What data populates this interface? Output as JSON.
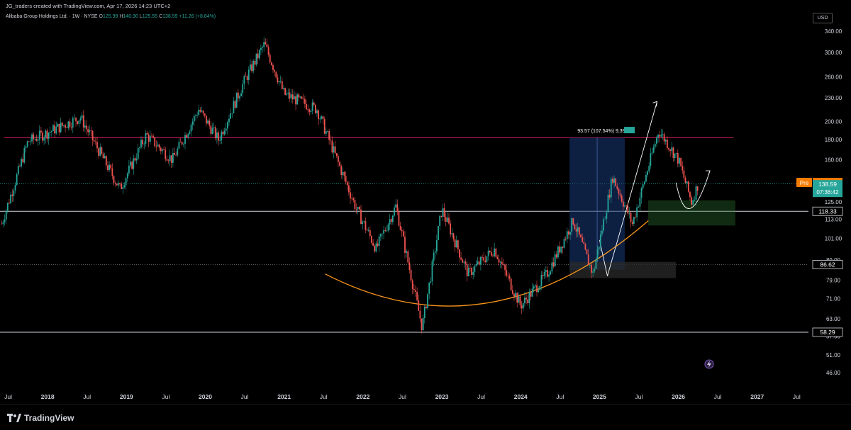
{
  "header": {
    "credit": "JG_traders created with TradingView.com, Apr 17, 2026 14:23 UTC+2"
  },
  "legend": {
    "symbol": "Alibaba Group Holdings Ltd. · 1W · NYSE",
    "open_label": "O",
    "open": "125.99",
    "high_label": "H",
    "high": "140.90",
    "low_label": "L",
    "low": "125.55",
    "close_label": "C",
    "close": "138.59",
    "change": "+11.26 (+8.84%)"
  },
  "currency": "USD",
  "footer": {
    "brand": "TradingView"
  },
  "annotation": {
    "measure": "93.57 (107.54%) 9,397"
  },
  "colors": {
    "up": "#26a69a",
    "down": "#ef5350",
    "orange": "#f7931a",
    "measure_box": "#1a3a78",
    "resistance": "#c2185b",
    "zone_green": "#2e7d32",
    "price_tag": "#26a69a",
    "pre_tag": "#f57c00"
  },
  "chart_data": {
    "type": "candlestick",
    "x_ticks": [
      "Jul",
      "2018",
      "Jul",
      "2019",
      "Jul",
      "2020",
      "Jul",
      "2021",
      "Jul",
      "2022",
      "Jul",
      "2023",
      "Jul",
      "2024",
      "Jul",
      "2025",
      "Jul",
      "2026",
      "Jul",
      "2027",
      "Jul"
    ],
    "y_ticks": [
      "340.00",
      "300.00",
      "260.00",
      "230.00",
      "200.00",
      "180.00",
      "160.00",
      "140.00",
      "125.00",
      "113.00",
      "101.00",
      "89.00",
      "79.00",
      "71.00",
      "63.00",
      "57.00",
      "51.00",
      "46.00"
    ],
    "y_scale": "log",
    "ylim": [
      42,
      360
    ],
    "price_tags": [
      {
        "label": "139.80",
        "prefix": "Pre",
        "kind": "pre"
      },
      {
        "label": "138.59",
        "sub": "07:36:42",
        "kind": "last"
      },
      {
        "label": "118.33",
        "kind": "line"
      },
      {
        "label": "86.62",
        "kind": "line"
      },
      {
        "label": "58.29",
        "kind": "line"
      }
    ],
    "horizontal_levels": [
      {
        "value": 182,
        "style": "solid",
        "color": "resistance"
      },
      {
        "value": 139,
        "style": "dotted",
        "color": "green"
      },
      {
        "value": 118.33,
        "style": "solid",
        "color": "white"
      },
      {
        "value": 86.62,
        "style": "dotted",
        "color": "gray"
      },
      {
        "value": 58.29,
        "style": "solid",
        "color": "white"
      }
    ],
    "close_path": [
      {
        "date": "2017-06",
        "close": 110
      },
      {
        "date": "2017-10",
        "close": 178
      },
      {
        "date": "2018-06",
        "close": 205
      },
      {
        "date": "2018-12",
        "close": 135
      },
      {
        "date": "2019-04",
        "close": 185
      },
      {
        "date": "2019-08",
        "close": 160
      },
      {
        "date": "2019-12",
        "close": 215
      },
      {
        "date": "2020-03",
        "close": 180
      },
      {
        "date": "2020-07",
        "close": 255
      },
      {
        "date": "2020-10",
        "close": 315
      },
      {
        "date": "2021-01",
        "close": 235
      },
      {
        "date": "2021-06",
        "close": 215
      },
      {
        "date": "2021-12",
        "close": 120
      },
      {
        "date": "2022-03",
        "close": 95
      },
      {
        "date": "2022-06",
        "close": 122
      },
      {
        "date": "2022-10",
        "close": 60
      },
      {
        "date": "2023-01",
        "close": 120
      },
      {
        "date": "2023-05",
        "close": 82
      },
      {
        "date": "2023-09",
        "close": 95
      },
      {
        "date": "2024-01",
        "close": 68
      },
      {
        "date": "2024-05",
        "close": 82
      },
      {
        "date": "2024-09",
        "close": 112
      },
      {
        "date": "2024-12",
        "close": 82
      },
      {
        "date": "2025-03",
        "close": 145
      },
      {
        "date": "2025-06",
        "close": 110
      },
      {
        "date": "2025-10",
        "close": 190
      },
      {
        "date": "2026-01",
        "close": 160
      },
      {
        "date": "2026-03",
        "close": 125
      },
      {
        "date": "2026-04",
        "close": 138.59
      }
    ]
  }
}
